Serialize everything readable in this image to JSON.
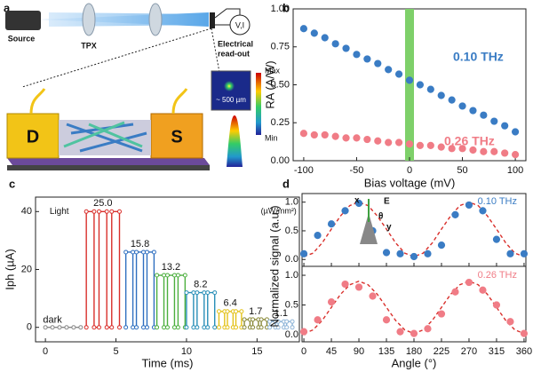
{
  "panel_a": {
    "label": "a",
    "source": "Source",
    "lens": "TPX",
    "readout_1": "Electrical",
    "readout_2": "read-out",
    "meter": "V,I",
    "drain": "D",
    "source_contact": "S",
    "scale": "~ 500 µm",
    "max": "Max",
    "min": "Min"
  },
  "chart_data": [
    {
      "type": "scatter",
      "panel_label": "b",
      "x_label": "Bias voltage (mV)",
      "y_label": "RA (A/W)",
      "x": [
        -100,
        -90,
        -80,
        -70,
        -60,
        -50,
        -40,
        -30,
        -20,
        -10,
        0,
        10,
        20,
        30,
        40,
        50,
        60,
        70,
        80,
        90,
        100
      ],
      "series": [
        {
          "name": "0.10 THz",
          "color": "#3a7cc4",
          "values": [
            0.87,
            0.84,
            0.81,
            0.77,
            0.74,
            0.7,
            0.67,
            0.64,
            0.6,
            0.57,
            0.53,
            0.5,
            0.47,
            0.43,
            0.4,
            0.36,
            0.33,
            0.3,
            0.26,
            0.23,
            0.19
          ]
        },
        {
          "name": "0.26 THz",
          "color": "#f07c86",
          "values": [
            0.18,
            0.17,
            0.17,
            0.16,
            0.15,
            0.15,
            0.14,
            0.13,
            0.12,
            0.12,
            0.11,
            0.1,
            0.1,
            0.09,
            0.08,
            0.08,
            0.07,
            0.06,
            0.06,
            0.05,
            0.04
          ]
        }
      ],
      "highlight_x": 0,
      "highlight_color": "#7ed06a",
      "xlim": [
        -110,
        110
      ],
      "ylim": [
        0,
        1
      ],
      "xticks": [
        -100,
        -50,
        0,
        50,
        100
      ],
      "yticks": [
        {
          "value": 0,
          "label": "0.00"
        },
        {
          "value": 0.25,
          "label": "0.25"
        },
        {
          "value": 0.5,
          "label": "0.50"
        },
        {
          "value": 0.75,
          "label": "0.75"
        },
        {
          "value": 1,
          "label": "1.00"
        }
      ]
    },
    {
      "type": "line",
      "panel_label": "c",
      "x_label": "Time (ms)",
      "y_label": "Iph (µA)",
      "annotations": [
        "Light",
        "(µW/mm²)"
      ],
      "series": [
        {
          "name": "dark",
          "color": "#888888",
          "x": [
            0,
            0.5,
            1,
            1.5,
            2,
            2.5
          ],
          "values": [
            0,
            0,
            0,
            0,
            0,
            0
          ]
        },
        {
          "name": "25.0",
          "color": "#d9302c",
          "x": [
            2.9,
            2.9,
            3.45,
            3.45,
            3.8,
            3.8,
            4.35,
            4.35,
            4.7,
            4.7,
            5.25,
            5.25
          ],
          "values": [
            0,
            40,
            40,
            0,
            0,
            40,
            40,
            0,
            0,
            40,
            40,
            0
          ]
        },
        {
          "name": "15.8",
          "color": "#2f6fc0",
          "x": [
            5.7,
            5.7,
            6.2,
            6.2,
            6.45,
            6.45,
            6.95,
            6.95,
            7.2,
            7.2,
            7.7,
            7.7
          ],
          "values": [
            0,
            26,
            26,
            0,
            0,
            26,
            26,
            0,
            0,
            26,
            26,
            0
          ]
        },
        {
          "name": "13.2",
          "color": "#4caf3e",
          "x": [
            7.9,
            7.9,
            8.4,
            8.4,
            8.65,
            8.65,
            9.15,
            9.15,
            9.4,
            9.4,
            9.9,
            9.9
          ],
          "values": [
            0,
            18,
            18,
            0,
            0,
            18,
            18,
            0,
            0,
            18,
            18,
            0
          ]
        },
        {
          "name": "8.2",
          "color": "#2a8fb8",
          "x": [
            10,
            10,
            10.5,
            10.5,
            10.75,
            10.75,
            11.25,
            11.25,
            11.5,
            11.5,
            12,
            12
          ],
          "values": [
            0,
            12,
            12,
            0,
            0,
            12,
            12,
            0,
            0,
            12,
            12,
            0
          ]
        },
        {
          "name": "6.4",
          "color": "#e3c21a",
          "x": [
            12.3,
            12.3,
            12.7,
            12.7,
            12.9,
            12.9,
            13.3,
            13.3,
            13.5,
            13.5,
            13.9,
            13.9
          ],
          "values": [
            0,
            5.5,
            5.5,
            0,
            0,
            5.5,
            5.5,
            0,
            0,
            5.5,
            5.5,
            0
          ]
        },
        {
          "name": "1.7",
          "color": "#8a8a3a",
          "x": [
            14.1,
            14.1,
            14.5,
            14.5,
            14.7,
            14.7,
            15.1,
            15.1,
            15.3,
            15.3,
            15.7,
            15.7
          ],
          "values": [
            0,
            2.7,
            2.7,
            0,
            0,
            2.7,
            2.7,
            0,
            0,
            2.7,
            2.7,
            0
          ]
        },
        {
          "name": "1.1",
          "color": "#8fb5d8",
          "x": [
            15.9,
            15.9,
            16.3,
            16.3,
            16.5,
            16.5,
            16.9,
            16.9,
            17.1,
            17.1,
            17.5,
            17.5
          ],
          "values": [
            0,
            2,
            2,
            0,
            0,
            2,
            2,
            0,
            0,
            2,
            2,
            0
          ]
        }
      ],
      "xlim": [
        -0.7,
        18
      ],
      "ylim": [
        -5,
        45
      ],
      "xticks": [
        0,
        5,
        10,
        15
      ],
      "yticks": [
        0,
        20,
        40
      ]
    },
    {
      "type": "scatter",
      "panel_label": "d",
      "annotations": [
        "x",
        "E",
        "θ",
        "y"
      ],
      "series": [
        {
          "color": "#d9302c",
          "line_style": "dashed",
          "x": [
            0,
            15,
            30,
            45,
            60,
            75,
            90,
            105,
            120,
            135,
            150,
            165,
            180,
            195,
            210,
            225,
            240,
            255,
            270,
            285,
            300,
            315,
            330,
            345,
            360
          ],
          "values": [
            0.05,
            0.11,
            0.29,
            0.53,
            0.76,
            0.94,
            1.0,
            0.94,
            0.76,
            0.53,
            0.29,
            0.11,
            0.05,
            0.11,
            0.29,
            0.53,
            0.76,
            0.94,
            1.0,
            0.94,
            0.76,
            0.53,
            0.29,
            0.11,
            0.05
          ]
        },
        {
          "name": "0.10 THz",
          "color": "#3a7cc4",
          "x": [
            0,
            22.5,
            45,
            67.5,
            90,
            112.5,
            135,
            157.5,
            180,
            202.5,
            225,
            247.5,
            270,
            292.5,
            315,
            337.5,
            360
          ],
          "values": [
            0.1,
            0.42,
            0.62,
            0.85,
            0.98,
            0.5,
            0.12,
            0.1,
            0.05,
            0.1,
            0.25,
            0.78,
            0.95,
            0.85,
            0.35,
            0.1,
            0.1
          ]
        }
      ],
      "xlim": [
        -3,
        363
      ],
      "ylim": [
        -0.12,
        1.15
      ],
      "xticks": [
        0,
        45,
        90,
        135,
        180,
        225,
        270,
        315,
        360
      ],
      "yticks": [
        {
          "value": 0,
          "label": "0.0"
        },
        {
          "value": 0.5,
          "label": "0.5"
        },
        {
          "value": 1,
          "label": "1.0"
        }
      ]
    },
    {
      "type": "scatter",
      "x_label": "Angle (°)",
      "y_label": "Normalized signal (a.u.)",
      "series": [
        {
          "color": "#d9302c",
          "line_style": "dashed",
          "x": [
            0,
            15,
            30,
            45,
            60,
            75,
            90,
            105,
            120,
            135,
            150,
            165,
            180,
            195,
            210,
            225,
            240,
            255,
            270,
            285,
            300,
            315,
            330,
            345,
            360
          ],
          "values": [
            0.02,
            0.08,
            0.24,
            0.46,
            0.68,
            0.84,
            0.9,
            0.84,
            0.68,
            0.46,
            0.24,
            0.08,
            0.02,
            0.08,
            0.24,
            0.46,
            0.68,
            0.84,
            0.9,
            0.84,
            0.68,
            0.46,
            0.24,
            0.08,
            0.02
          ]
        },
        {
          "name": "0.26 THz",
          "color": "#f07c86",
          "x": [
            0,
            22.5,
            45,
            67.5,
            90,
            112.5,
            135,
            157.5,
            180,
            202.5,
            225,
            247.5,
            270,
            292.5,
            315,
            337.5,
            360
          ],
          "values": [
            0.05,
            0.25,
            0.55,
            0.85,
            0.8,
            0.65,
            0.25,
            0.05,
            0.02,
            0.1,
            0.35,
            0.72,
            0.88,
            0.75,
            0.5,
            0.22,
            0.02
          ]
        }
      ],
      "xlim": [
        -3,
        363
      ],
      "ylim": [
        -0.12,
        1.15
      ],
      "xticks": [
        0,
        45,
        90,
        135,
        180,
        225,
        270,
        315,
        360
      ],
      "yticks": [
        {
          "value": 0,
          "label": "0.0"
        },
        {
          "value": 0.5,
          "label": "0.5"
        },
        {
          "value": 1,
          "label": "1.0"
        }
      ]
    }
  ]
}
